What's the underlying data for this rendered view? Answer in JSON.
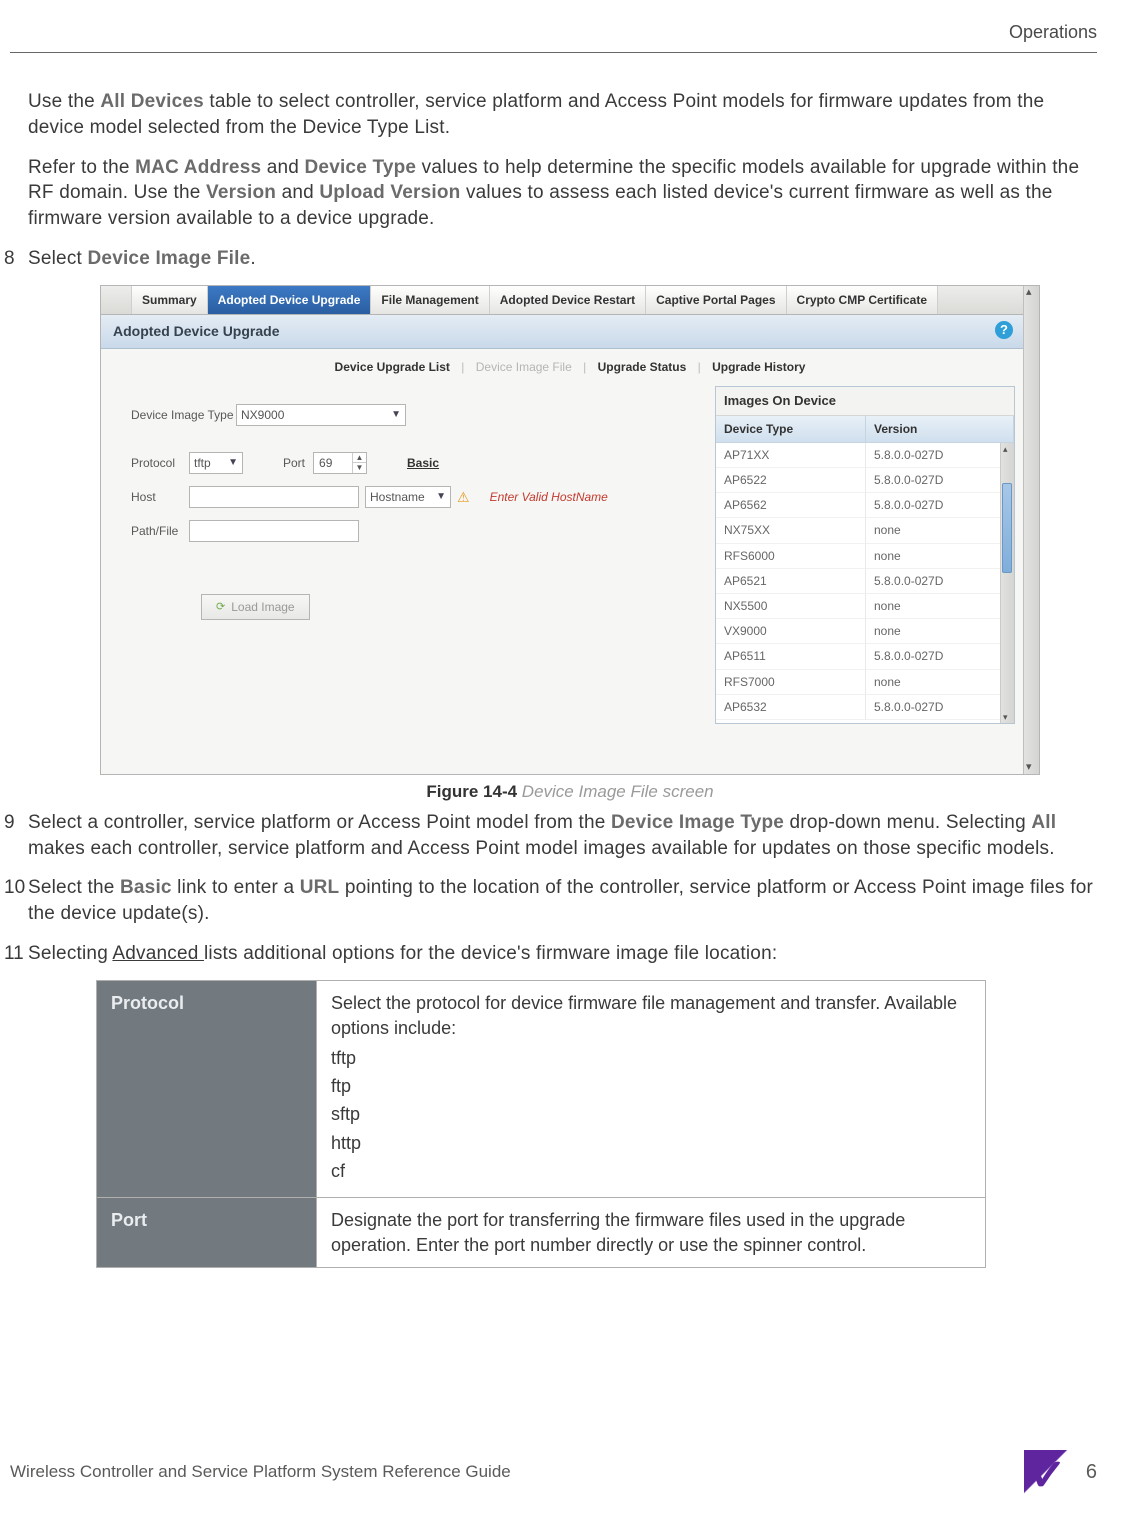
{
  "header": {
    "section": "Operations"
  },
  "paragraphs": {
    "p1_a": "Use the ",
    "p1_bold1": "All Devices",
    "p1_b": " table to select controller, service platform and Access Point models for firmware updates from the device model selected from the Device Type List.",
    "p2_a": "Refer to the ",
    "p2_bold1": "MAC Address",
    "p2_b": " and ",
    "p2_bold2": "Device Type",
    "p2_c": " values to help determine the specific models available for upgrade within the RF domain. Use the ",
    "p2_bold3": "Version",
    "p2_d": " and ",
    "p2_bold4": "Upload Version",
    "p2_e": " values to assess each listed device's current firmware as well as the firmware version available to a device upgrade."
  },
  "steps": {
    "s8_num": "8",
    "s8_a": "Select ",
    "s8_bold": "Device Image File",
    "s8_b": ".",
    "s9_num": "9",
    "s9_a": "Select a controller, service platform or Access Point model from the ",
    "s9_bold1": "Device Image Type",
    "s9_b": " drop-down menu. Selecting ",
    "s9_bold2": "All",
    "s9_c": " makes each controller, service platform and Access Point model images available for updates on those specific models.",
    "s10_num": "10",
    "s10_a": "Select the ",
    "s10_bold1": "Basic",
    "s10_b": " link to enter a ",
    "s10_bold2": "URL",
    "s10_c": " pointing to the location of the controller, service platform or Access Point image files for the device update(s).",
    "s11_num": "11",
    "s11_a": "Selecting ",
    "s11_under": "Advanced ",
    "s11_b": "lists additional options for the device's firmware image file location:"
  },
  "figure": {
    "caption_label": "Figure 14-4",
    "caption_desc": "  Device Image File screen",
    "tabs": {
      "summary": "Summary",
      "adopted_upgrade": "Adopted Device Upgrade",
      "file_mgmt": "File Management",
      "adopted_restart": "Adopted Device Restart",
      "captive": "Captive Portal Pages",
      "crypto": "Crypto CMP Certificate"
    },
    "panel_title": "Adopted Device Upgrade",
    "help": "?",
    "subnav": {
      "a": "Device Upgrade List",
      "b": "Device Image File",
      "c": "Upgrade  Status",
      "d": "Upgrade History"
    },
    "form": {
      "device_image_type_label": "Device Image Type",
      "device_image_type_value": "NX9000",
      "protocol_label": "Protocol",
      "protocol_value": "tftp",
      "port_label": "Port",
      "port_value": "69",
      "basic_link": "Basic",
      "host_label": "Host",
      "hostname_value": "Hostname",
      "error_text": "Enter Valid HostName",
      "pathfile_label": "Path/File",
      "load_image": "Load Image"
    },
    "images_panel": {
      "title": "Images On Device",
      "col_a": "Device Type",
      "col_b": "Version",
      "rows": [
        {
          "a": "AP71XX",
          "b": "5.8.0.0-027D"
        },
        {
          "a": "AP6522",
          "b": "5.8.0.0-027D"
        },
        {
          "a": "AP6562",
          "b": "5.8.0.0-027D"
        },
        {
          "a": "NX75XX",
          "b": "none"
        },
        {
          "a": "RFS6000",
          "b": "none"
        },
        {
          "a": "AP6521",
          "b": "5.8.0.0-027D"
        },
        {
          "a": "NX5500",
          "b": "none"
        },
        {
          "a": "VX9000",
          "b": "none"
        },
        {
          "a": "AP6511",
          "b": "5.8.0.0-027D"
        },
        {
          "a": "RFS7000",
          "b": "none"
        },
        {
          "a": "AP6532",
          "b": "5.8.0.0-027D"
        }
      ]
    }
  },
  "options_table": {
    "protocol_label": "Protocol",
    "protocol_desc": "Select the protocol for device firmware file management and transfer. Available options include:",
    "protocol_list": [
      "tftp",
      "ftp",
      "sftp",
      "http",
      "cf"
    ],
    "port_label": "Port",
    "port_desc": "Designate the port for transferring the firmware files used in the upgrade operation. Enter the port number directly or use the spinner control."
  },
  "footer": {
    "left": "Wireless Controller and Service Platform System Reference Guide",
    "page": "6"
  },
  "colors": {
    "bold_gray": "#6b6b6b",
    "tab_active_bg": "#2a5ea1",
    "error_red": "#c43a2f",
    "brand_purple": "#5f259f"
  }
}
